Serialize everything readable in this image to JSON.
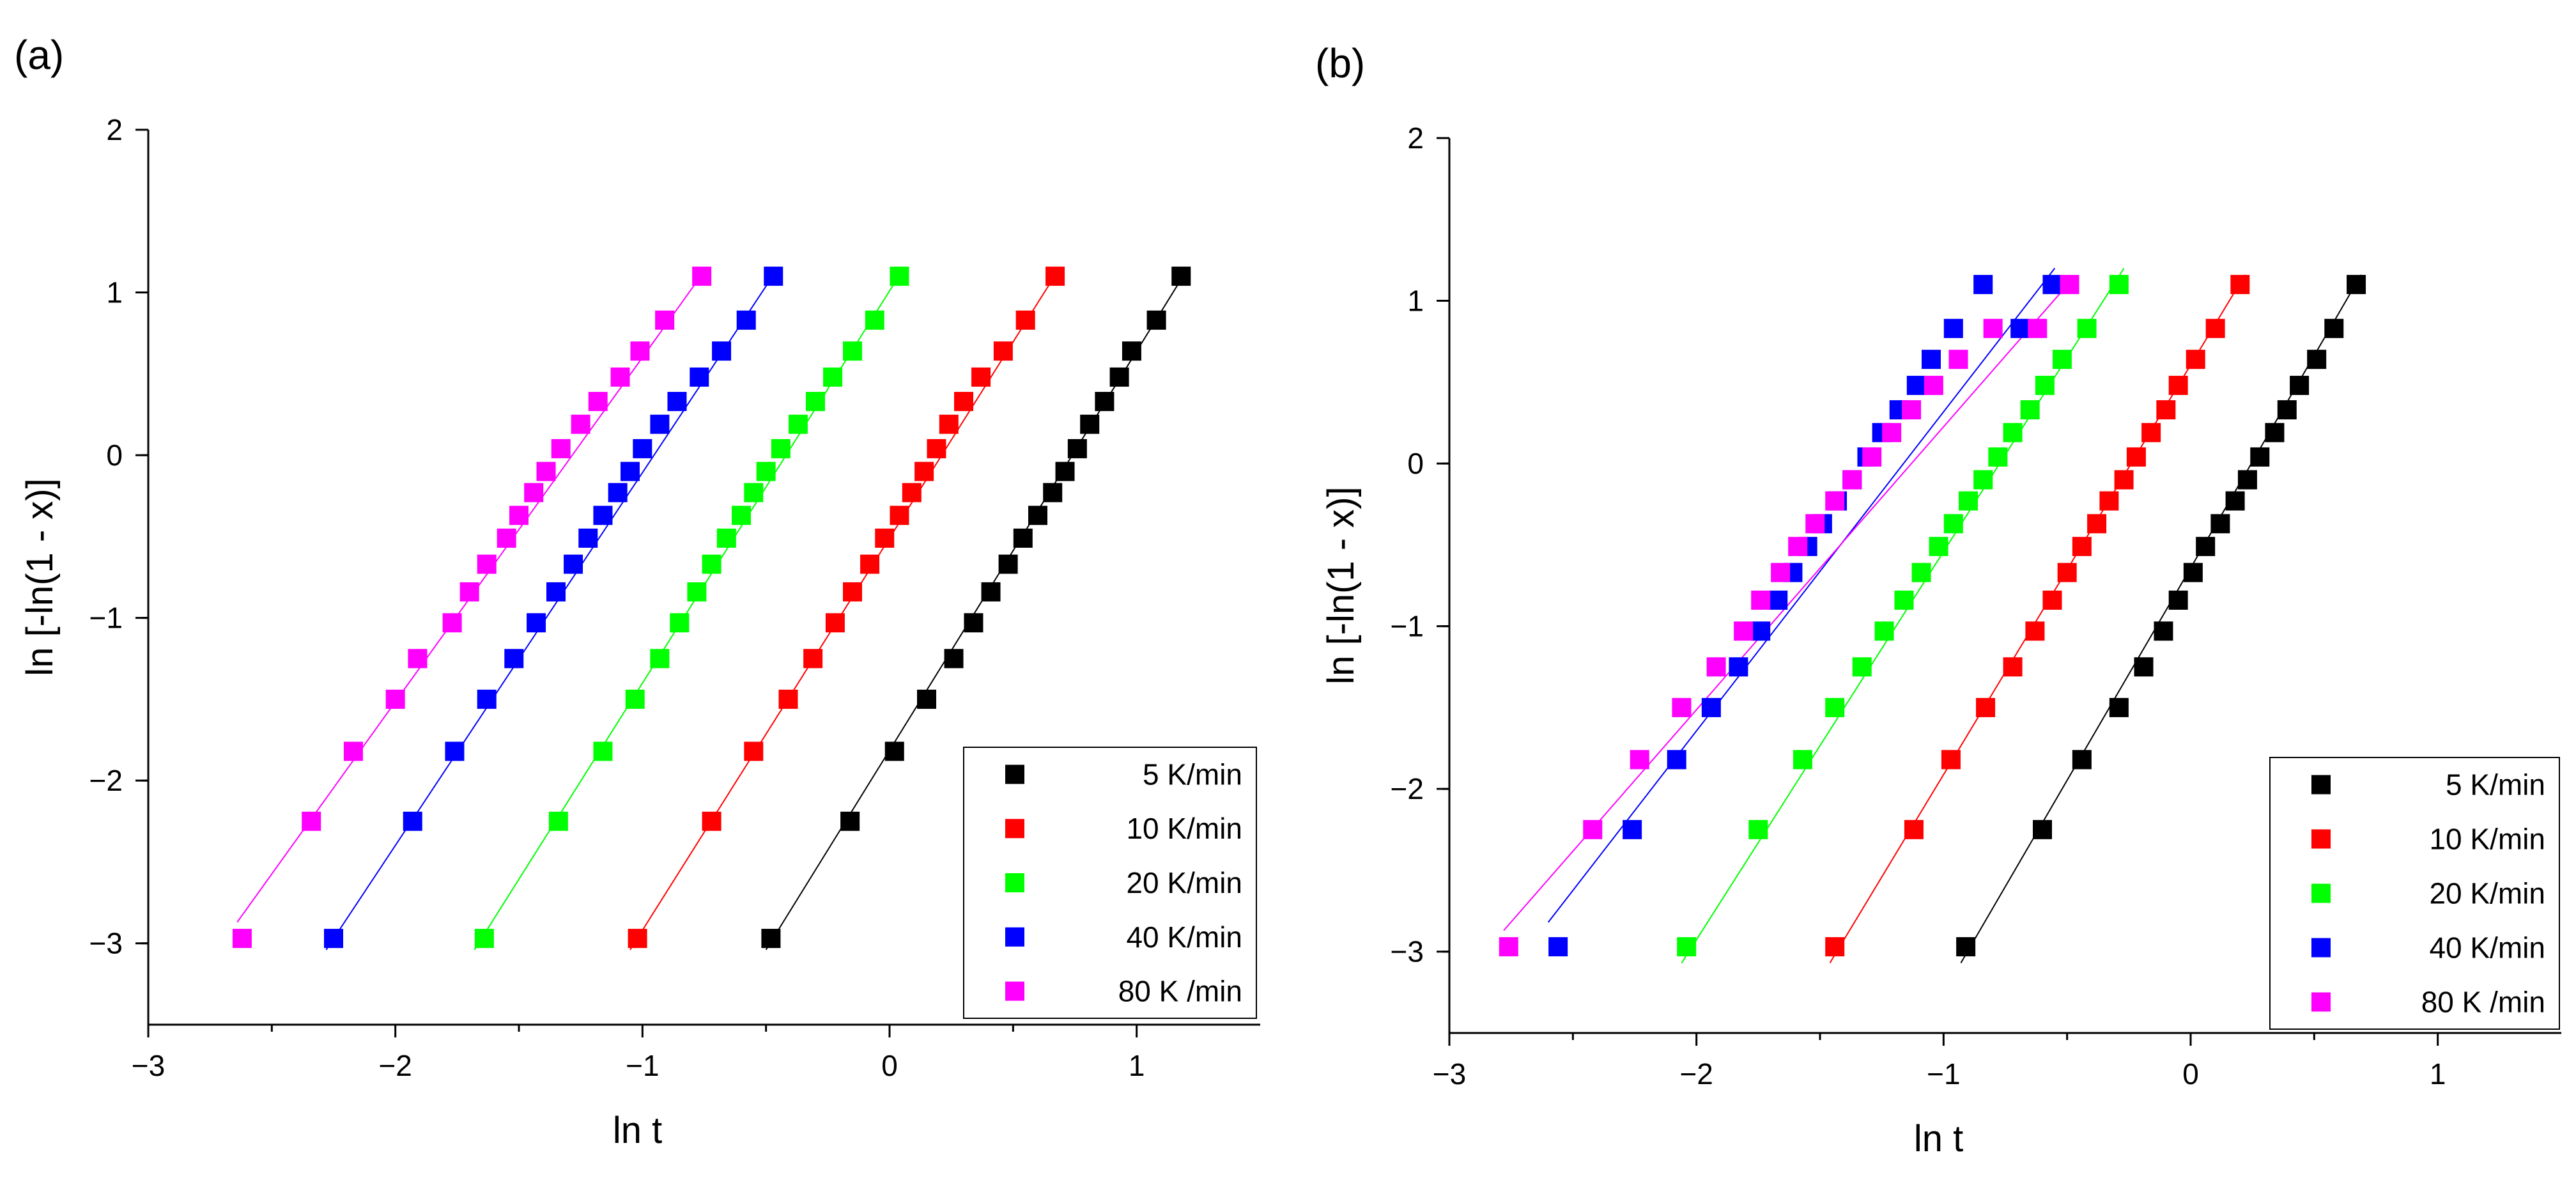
{
  "chart_data": [
    {
      "panel_label": "(a)",
      "type": "scatter",
      "xlabel": "ln t",
      "ylabel": "ln [-ln(1 - x)]",
      "xlim": [
        -3,
        1.5
      ],
      "ylim": [
        -3.5,
        2
      ],
      "x_ticks": [
        {
          "v": -3,
          "label": "−3"
        },
        {
          "v": -2,
          "label": "−2"
        },
        {
          "v": -1,
          "label": "−1"
        },
        {
          "v": 0,
          "label": "0"
        },
        {
          "v": 1,
          "label": "1"
        }
      ],
      "y_ticks": [
        {
          "v": -3,
          "label": "−3"
        },
        {
          "v": -2,
          "label": "−2"
        },
        {
          "v": -1,
          "label": "−1"
        },
        {
          "v": 0,
          "label": "0"
        },
        {
          "v": 1,
          "label": "1"
        },
        {
          "v": 2,
          "label": "2"
        }
      ],
      "y_levels": [
        -2.97,
        -2.25,
        -1.82,
        -1.5,
        -1.25,
        -1.03,
        -0.84,
        -0.67,
        -0.51,
        -0.37,
        -0.23,
        -0.1,
        0.04,
        0.19,
        0.33,
        0.48,
        0.64,
        0.83,
        1.1
      ],
      "legend": {
        "position": "bottom-right"
      },
      "series": [
        {
          "name": " 5 K/min",
          "color": "#000000",
          "x": [
            -0.48,
            -0.16,
            0.02,
            0.15,
            0.26,
            0.34,
            0.41,
            0.48,
            0.54,
            0.6,
            0.66,
            0.71,
            0.76,
            0.81,
            0.87,
            0.93,
            0.98,
            1.08,
            1.18
          ],
          "fit": [
            [
              -0.5,
              -3.04
            ],
            [
              1.2,
              1.13
            ]
          ]
        },
        {
          "name": "10 K/min",
          "color": "#ff0000",
          "x": [
            -1.02,
            -0.72,
            -0.55,
            -0.41,
            -0.31,
            -0.22,
            -0.15,
            -0.08,
            -0.02,
            0.04,
            0.09,
            0.14,
            0.19,
            0.24,
            0.3,
            0.37,
            0.46,
            0.55,
            0.67
          ],
          "fit": [
            [
              -1.05,
              -3.04
            ],
            [
              0.68,
              1.13
            ]
          ]
        },
        {
          "name": "20 K/min",
          "color": "#00ff00",
          "x": [
            -1.64,
            -1.34,
            -1.16,
            -1.03,
            -0.93,
            -0.85,
            -0.78,
            -0.72,
            -0.66,
            -0.6,
            -0.55,
            -0.5,
            -0.44,
            -0.37,
            -0.3,
            -0.23,
            -0.15,
            -0.06,
            0.04
          ],
          "fit": [
            [
              -1.68,
              -3.04
            ],
            [
              0.05,
              1.13
            ]
          ]
        },
        {
          "name": "40 K/min",
          "color": "#0000ff",
          "x": [
            -2.25,
            -1.93,
            -1.76,
            -1.63,
            -1.52,
            -1.43,
            -1.35,
            -1.28,
            -1.22,
            -1.16,
            -1.1,
            -1.05,
            -1.0,
            -0.93,
            -0.86,
            -0.77,
            -0.68,
            -0.58,
            -0.47
          ],
          "fit": [
            [
              -2.28,
              -3.04
            ],
            [
              -0.46,
              1.13
            ]
          ]
        },
        {
          "name": "80 K /min",
          "color": "#ff00ff",
          "x": [
            -2.62,
            -2.34,
            -2.17,
            -2.0,
            -1.91,
            -1.77,
            -1.7,
            -1.63,
            -1.55,
            -1.5,
            -1.44,
            -1.39,
            -1.33,
            -1.25,
            -1.18,
            -1.09,
            -1.01,
            -0.91,
            -0.76
          ],
          "fit": [
            [
              -2.64,
              -2.87
            ],
            [
              -0.75,
              1.13
            ]
          ]
        }
      ]
    },
    {
      "panel_label": "(b)",
      "type": "scatter",
      "xlabel": "ln t",
      "ylabel": "ln [-ln(1 - x)]",
      "xlim": [
        -3,
        1.5
      ],
      "ylim": [
        -3.5,
        2
      ],
      "x_ticks": [
        {
          "v": -3,
          "label": "−3"
        },
        {
          "v": -2,
          "label": "−2"
        },
        {
          "v": -1,
          "label": "−1"
        },
        {
          "v": 0,
          "label": "0"
        },
        {
          "v": 1,
          "label": "1"
        }
      ],
      "y_ticks": [
        {
          "v": -3,
          "label": "−3"
        },
        {
          "v": -2,
          "label": "−2"
        },
        {
          "v": -1,
          "label": "−1"
        },
        {
          "v": 0,
          "label": "0"
        },
        {
          "v": 1,
          "label": "1"
        },
        {
          "v": 2,
          "label": "2"
        }
      ],
      "y_levels": [
        -2.97,
        -2.25,
        -1.82,
        -1.5,
        -1.25,
        -1.03,
        -0.84,
        -0.67,
        -0.51,
        -0.37,
        -0.23,
        -0.1,
        0.04,
        0.19,
        0.33,
        0.48,
        0.64,
        0.83,
        1.1
      ],
      "legend": {
        "position": "bottom-right"
      },
      "series": [
        {
          "name": " 5 K/min",
          "color": "#000000",
          "x": [
            -0.91,
            -0.6,
            -0.44,
            -0.29,
            -0.19,
            -0.11,
            -0.05,
            0.01,
            0.06,
            0.12,
            0.18,
            0.23,
            0.28,
            0.34,
            0.39,
            0.44,
            0.51,
            0.58,
            0.67
          ],
          "fit": [
            [
              -0.93,
              -3.07
            ],
            [
              0.69,
              1.16
            ]
          ]
        },
        {
          "name": "10 K/min",
          "color": "#ff0000",
          "x": [
            -1.44,
            -1.12,
            -0.97,
            -0.83,
            -0.72,
            -0.63,
            -0.56,
            -0.5,
            -0.44,
            -0.38,
            -0.33,
            -0.27,
            -0.22,
            -0.16,
            -0.1,
            -0.05,
            0.02,
            0.1,
            0.2
          ],
          "fit": [
            [
              -1.46,
              -3.07
            ],
            [
              0.22,
              1.16
            ]
          ]
        },
        {
          "name": "20 K/min",
          "color": "#00ff00",
          "x": [
            -2.04,
            -1.75,
            -1.57,
            -1.44,
            -1.33,
            -1.24,
            -1.16,
            -1.09,
            -1.02,
            -0.96,
            -0.9,
            -0.84,
            -0.78,
            -0.72,
            -0.65,
            -0.59,
            -0.52,
            -0.42,
            -0.29
          ],
          "fit": [
            [
              -2.06,
              -3.07
            ],
            [
              -0.27,
              1.2
            ]
          ]
        },
        {
          "name": "40 K/min",
          "color": "#0000ff",
          "x": [
            -2.56,
            -2.26,
            -2.08,
            -1.94,
            -1.83,
            -1.74,
            -1.67,
            -1.61,
            -1.55,
            -1.49,
            -1.43,
            -1.37,
            -1.31,
            -1.25,
            -1.18,
            -1.11,
            -1.05,
            -0.96,
            -0.84,
            -0.69,
            -0.56
          ],
          "y": [
            -2.97,
            -2.25,
            -1.82,
            -1.5,
            -1.25,
            -1.03,
            -0.84,
            -0.67,
            -0.51,
            -0.37,
            -0.23,
            -0.1,
            0.04,
            0.19,
            0.33,
            0.48,
            0.64,
            0.83,
            1.1,
            0.83,
            1.1
          ],
          "fit": [
            [
              -2.6,
              -2.82
            ],
            [
              -0.55,
              1.2
            ]
          ]
        },
        {
          "name": "80 K /min",
          "color": "#ff00ff",
          "x": [
            -2.76,
            -2.42,
            -2.23,
            -2.06,
            -1.92,
            -1.81,
            -1.74,
            -1.66,
            -1.59,
            -1.52,
            -1.44,
            -1.37,
            -1.29,
            -1.21,
            -1.13,
            -1.04,
            -0.94,
            -0.8,
            -0.62,
            -0.49
          ],
          "y": [
            -2.97,
            -2.25,
            -1.82,
            -1.5,
            -1.25,
            -1.03,
            -0.84,
            -0.67,
            -0.51,
            -0.37,
            -0.23,
            -0.1,
            0.04,
            0.19,
            0.33,
            0.48,
            0.64,
            0.83,
            0.83,
            1.1
          ],
          "fit": [
            [
              -2.78,
              -2.87
            ],
            [
              -0.48,
              1.13
            ]
          ]
        }
      ]
    }
  ]
}
